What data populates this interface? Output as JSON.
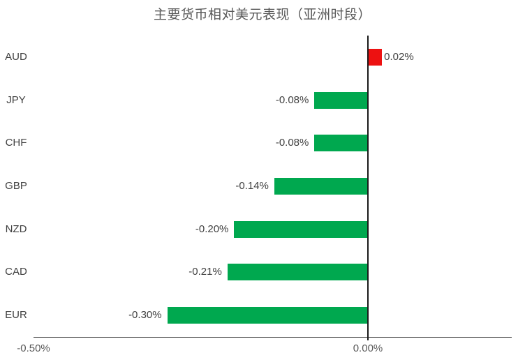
{
  "chart_data": {
    "type": "bar",
    "orientation": "horizontal",
    "title": "主要货币相对美元表现（亚洲时段）",
    "categories": [
      "AUD",
      "JPY",
      "CHF",
      "GBP",
      "NZD",
      "CAD",
      "EUR"
    ],
    "values": [
      0.02,
      -0.08,
      -0.08,
      -0.14,
      -0.2,
      -0.21,
      -0.3
    ],
    "data_labels": [
      "0.02%",
      "-0.08%",
      "-0.08%",
      "-0.14%",
      "-0.20%",
      "-0.21%",
      "-0.30%"
    ],
    "x_ticks": [
      {
        "label": "-0.50%",
        "value": -0.5
      },
      {
        "label": "0.00%",
        "value": 0.0
      }
    ],
    "xlim": [
      -0.5,
      0.215
    ],
    "value_unit": "percent",
    "grid": false,
    "legend": "none",
    "colors": {
      "positive_bar": "#ed1111",
      "negative_bar": "#00a84f",
      "title_text": "#595959",
      "label_text": "#404040",
      "axis_line": "#333333",
      "zero_line": "#1a1a1a"
    }
  }
}
